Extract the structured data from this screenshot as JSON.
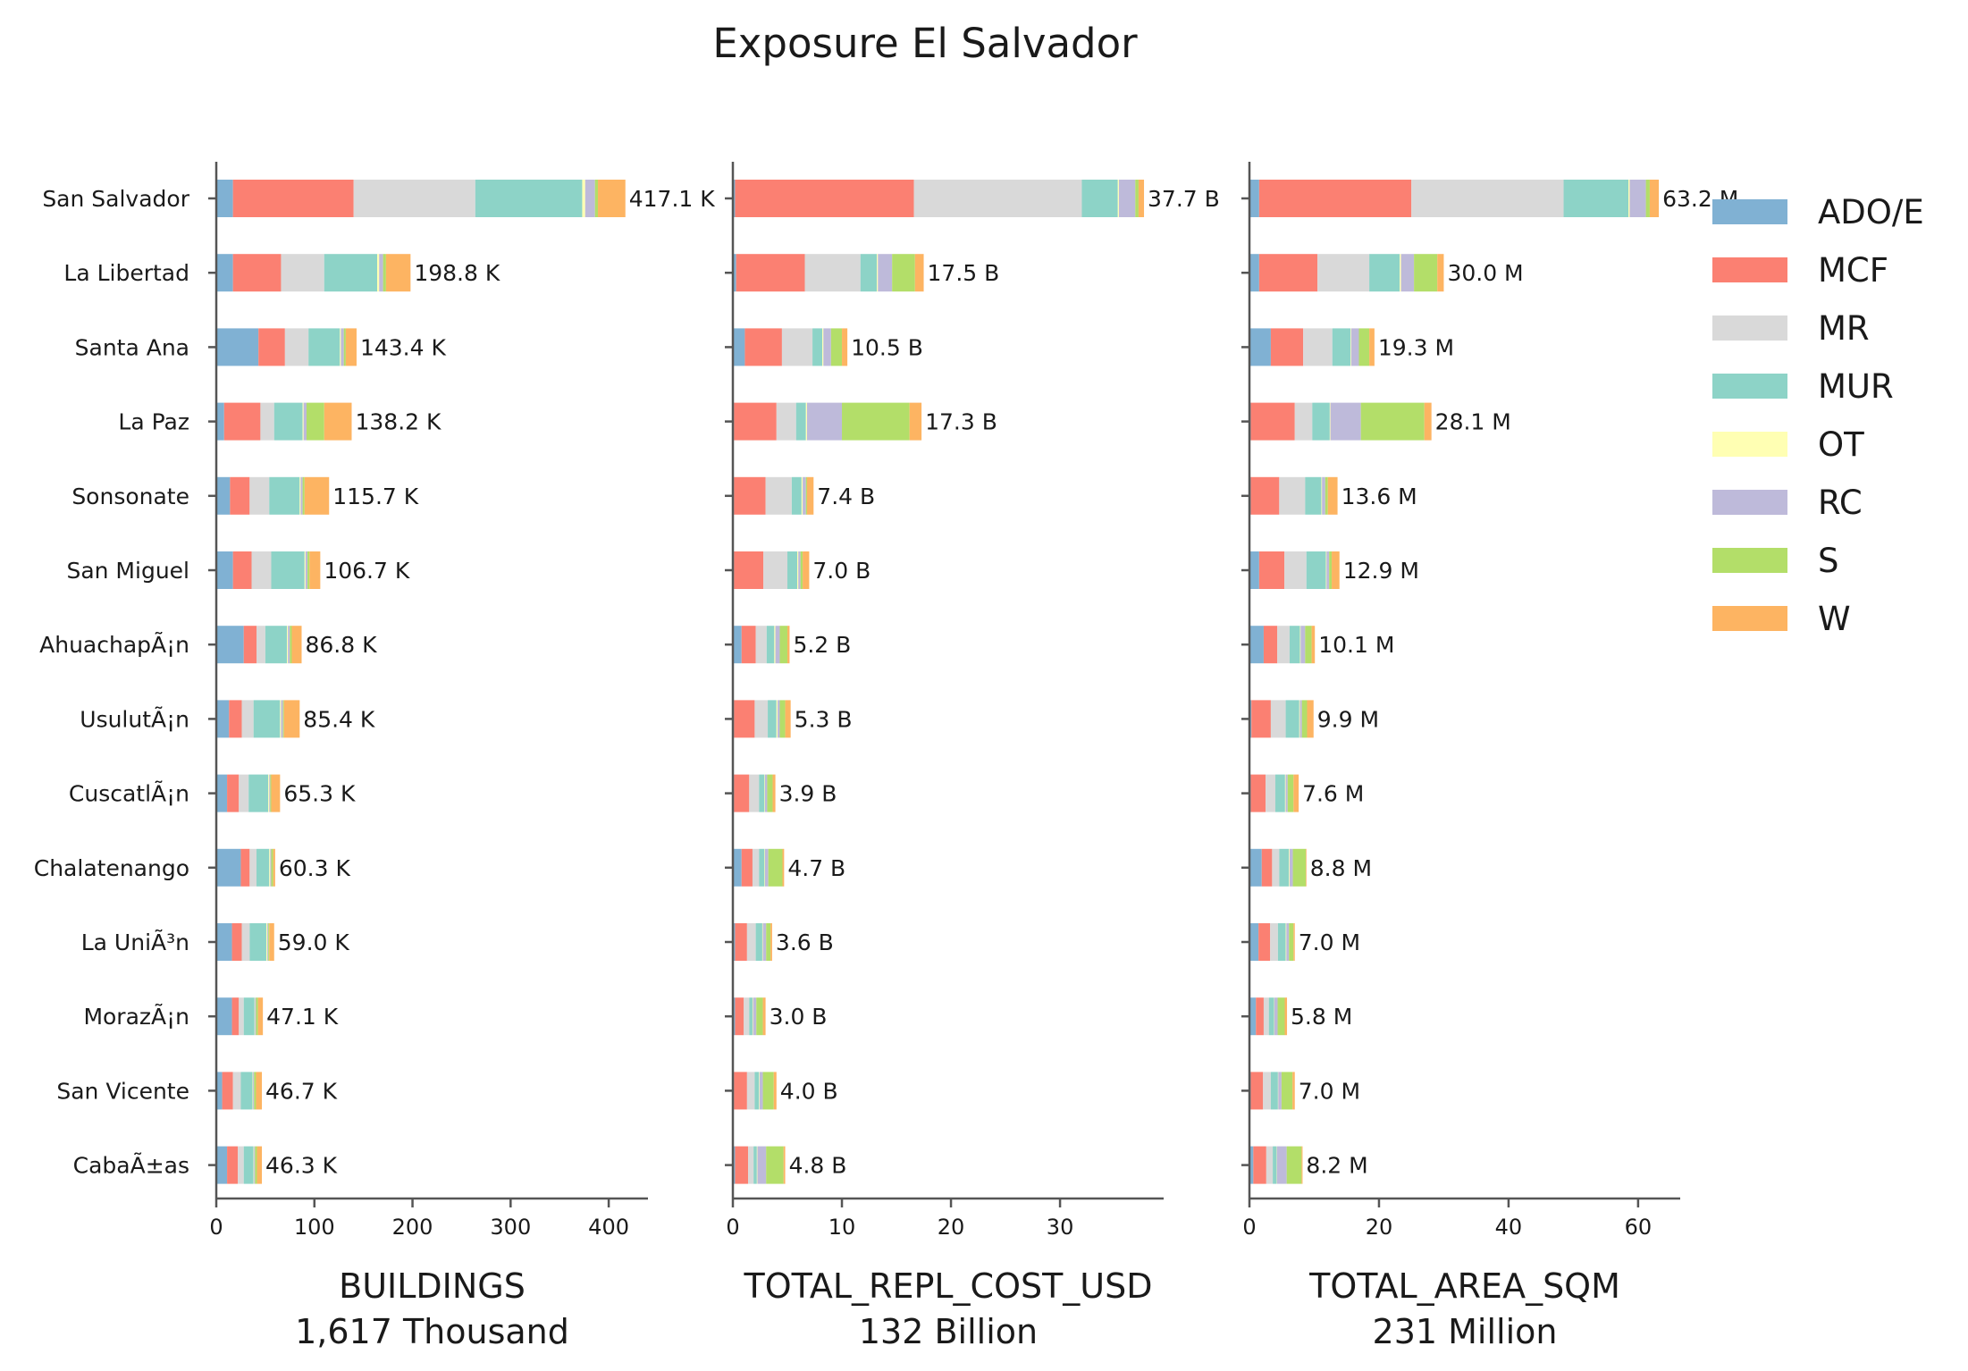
{
  "chart_data": {
    "type": "bar",
    "orientation": "horizontal",
    "stacked": true,
    "title": "Exposure El Salvador",
    "categories": [
      "San Salvador",
      "La Libertad",
      "Santa Ana",
      "La Paz",
      "Sonsonate",
      "San Miguel",
      "AhuachapÃ¡n",
      "UsulutÃ¡n",
      "CuscatlÃ¡n",
      "Chalatenango",
      "La UniÃ³n",
      "MorazÃ¡n",
      "San Vicente",
      "CabaÃ±as"
    ],
    "legend": {
      "placement": "top-right",
      "entries": [
        "ADO/E",
        "MCF",
        "MR",
        "MUR",
        "OT",
        "RC",
        "S",
        "W"
      ],
      "colors": [
        "#80b1d3",
        "#fb8072",
        "#d9d9d9",
        "#8dd3c7",
        "#ffffb3",
        "#bebada",
        "#b3de69",
        "#fdb462"
      ]
    },
    "grid": false,
    "panels": [
      {
        "xlabel": "BUILDINGS",
        "subtitle": "1,617 Thousand",
        "xlim": [
          0,
          440
        ],
        "xticks": [
          0,
          100,
          200,
          300,
          400
        ],
        "series": [
          {
            "name": "ADO/E",
            "values": [
              17,
              17,
              43,
              8,
              14,
              17,
              28,
              13,
              11,
              25,
              16,
              16,
              6,
              11
            ]
          },
          {
            "name": "MCF",
            "values": [
              123,
              49,
              27,
              37,
              20,
              19,
              13,
              13,
              12,
              9,
              10,
              7,
              11,
              11
            ]
          },
          {
            "name": "MR",
            "values": [
              124,
              44,
              24,
              14,
              20,
              20,
              9,
              12,
              10,
              7,
              8,
              5,
              8,
              6
            ]
          },
          {
            "name": "MUR",
            "values": [
              109,
              54,
              32,
              29,
              31,
              34,
              22,
              27,
              20,
              13,
              17,
              11,
              12,
              10
            ]
          },
          {
            "name": "OT",
            "values": [
              3,
              2,
              1,
              1,
              1,
              1,
              1,
              1,
              1,
              1,
              1,
              0.5,
              0.5,
              0.5
            ]
          },
          {
            "name": "RC",
            "values": [
              10,
              4,
              3,
              3,
              2,
              2,
              2,
              2,
              1,
              1,
              1,
              1,
              1,
              1
            ]
          },
          {
            "name": "S",
            "values": [
              3,
              3,
              2,
              18,
              2,
              2,
              2,
              1,
              1,
              2,
              1,
              2,
              2,
              2
            ]
          },
          {
            "name": "W",
            "values": [
              28,
              25,
              11,
              28,
              25,
              11,
              10,
              16,
              9,
              2,
              5,
              5,
              6,
              5
            ]
          }
        ],
        "labels": [
          "417.1 K",
          "198.8 K",
          "143.4 K",
          "138.2 K",
          "115.7 K",
          "106.7 K",
          "86.8 K",
          "85.4 K",
          "65.3 K",
          "60.3 K",
          "59.0 K",
          "47.1 K",
          "46.7 K",
          "46.3 K"
        ]
      },
      {
        "xlabel": "TOTAL_REPL_COST_USD",
        "subtitle": "132 Billion",
        "xlim": [
          0,
          39.5
        ],
        "xticks": [
          0,
          10,
          20,
          30
        ],
        "series": [
          {
            "name": "ADO/E",
            "values": [
              0.2,
              0.3,
              1.1,
              0.1,
              0.1,
              0.1,
              0.8,
              0.1,
              0.1,
              0.8,
              0.2,
              0.2,
              0.1,
              0.2
            ]
          },
          {
            "name": "MCF",
            "values": [
              16.4,
              6.3,
              3.4,
              3.9,
              2.9,
              2.7,
              1.3,
              1.9,
              1.4,
              1.0,
              1.1,
              0.8,
              1.2,
              1.2
            ]
          },
          {
            "name": "MR",
            "values": [
              15.4,
              5.1,
              2.8,
              1.8,
              2.4,
              2.2,
              1.0,
              1.2,
              0.9,
              0.6,
              0.8,
              0.5,
              0.7,
              0.5
            ]
          },
          {
            "name": "MUR",
            "values": [
              3.3,
              1.5,
              0.9,
              0.9,
              0.9,
              0.9,
              0.7,
              0.8,
              0.5,
              0.5,
              0.6,
              0.3,
              0.4,
              0.3
            ]
          },
          {
            "name": "OT",
            "values": [
              0.1,
              0.1,
              0.1,
              0.1,
              0.1,
              0.1,
              0.1,
              0.1,
              0.05,
              0.05,
              0.05,
              0.05,
              0.05,
              0.05
            ]
          },
          {
            "name": "RC",
            "values": [
              1.5,
              1.3,
              0.7,
              3.2,
              0.3,
              0.2,
              0.4,
              0.2,
              0.2,
              0.3,
              0.3,
              0.3,
              0.3,
              0.8
            ]
          },
          {
            "name": "S",
            "values": [
              0.3,
              2.1,
              1.0,
              6.2,
              0.1,
              0.2,
              0.7,
              0.5,
              0.5,
              1.3,
              0.4,
              0.6,
              1.0,
              1.6
            ]
          },
          {
            "name": "W",
            "values": [
              0.5,
              0.8,
              0.5,
              1.1,
              0.6,
              0.6,
              0.2,
              0.5,
              0.25,
              0.15,
              0.15,
              0.25,
              0.25,
              0.15
            ]
          }
        ],
        "labels": [
          "37.7 B",
          "17.5 B",
          "10.5 B",
          "17.3 B",
          "7.4 B",
          "7.0 B",
          "5.2 B",
          "5.3 B",
          "3.9 B",
          "4.7 B",
          "3.6 B",
          "3.0 B",
          "4.0 B",
          "4.8 B"
        ]
      },
      {
        "xlabel": "TOTAL_AREA_SQM",
        "subtitle": "231 Million",
        "xlim": [
          0,
          66.5
        ],
        "xticks": [
          0,
          20,
          40,
          60
        ],
        "series": [
          {
            "name": "ADO/E",
            "values": [
              1.5,
              1.5,
              3.3,
              0.2,
              0.2,
              1.5,
              2.2,
              0.3,
              0.2,
              1.9,
              1.4,
              1.0,
              0.2,
              0.6
            ]
          },
          {
            "name": "MCF",
            "values": [
              23.5,
              9.0,
              5.0,
              6.8,
              4.4,
              3.9,
              2.1,
              3.0,
              2.3,
              1.6,
              1.8,
              1.2,
              1.9,
              2.0
            ]
          },
          {
            "name": "MR",
            "values": [
              23.5,
              8.0,
              4.5,
              2.7,
              4.0,
              3.4,
              1.9,
              2.3,
              1.5,
              1.1,
              1.2,
              0.8,
              1.2,
              1.0
            ]
          },
          {
            "name": "MUR",
            "values": [
              10.0,
              4.7,
              2.8,
              2.7,
              2.5,
              3.0,
              1.6,
              2.1,
              1.5,
              1.5,
              1.2,
              0.8,
              1.1,
              0.6
            ]
          },
          {
            "name": "OT",
            "values": [
              0.2,
              0.2,
              0.1,
              0.1,
              0.1,
              0.1,
              0.1,
              0.1,
              0.1,
              0.1,
              0.1,
              0.05,
              0.05,
              0.05
            ]
          },
          {
            "name": "RC",
            "values": [
              2.5,
              2.0,
              1.2,
              4.7,
              0.5,
              0.4,
              0.7,
              0.3,
              0.3,
              0.5,
              0.4,
              0.5,
              0.5,
              1.5
            ]
          },
          {
            "name": "S",
            "values": [
              0.6,
              3.6,
              1.6,
              9.8,
              0.4,
              0.4,
              1.0,
              0.8,
              0.9,
              2.0,
              0.7,
              1.1,
              1.7,
              2.3
            ]
          },
          {
            "name": "W",
            "values": [
              1.4,
              1.0,
              0.8,
              1.1,
              1.5,
              1.2,
              0.5,
              1.0,
              0.8,
              0.1,
              0.2,
              0.35,
              0.35,
              0.15
            ]
          }
        ],
        "labels": [
          "63.2 M",
          "30.0 M",
          "19.3 M",
          "28.1 M",
          "13.6 M",
          "12.9 M",
          "10.1 M",
          "9.9 M",
          "7.6 M",
          "8.8 M",
          "7.0 M",
          "5.8 M",
          "7.0 M",
          "8.2 M"
        ]
      }
    ]
  }
}
